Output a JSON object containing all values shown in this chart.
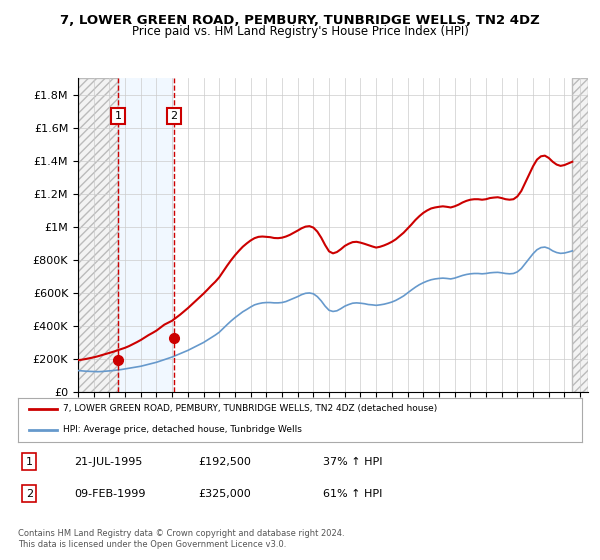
{
  "title": "7, LOWER GREEN ROAD, PEMBURY, TUNBRIDGE WELLS, TN2 4DZ",
  "subtitle": "Price paid vs. HM Land Registry's House Price Index (HPI)",
  "ylabel": "",
  "ylim": [
    0,
    1900000
  ],
  "yticks": [
    0,
    200000,
    400000,
    600000,
    800000,
    1000000,
    1200000,
    1400000,
    1600000,
    1800000
  ],
  "ytick_labels": [
    "£0",
    "£200K",
    "£400K",
    "£600K",
    "£800K",
    "£1M",
    "£1.2M",
    "£1.4M",
    "£1.6M",
    "£1.8M"
  ],
  "xlim_start": 1993.0,
  "xlim_end": 2025.5,
  "background_color": "#ffffff",
  "plot_bg_color": "#ffffff",
  "grid_color": "#cccccc",
  "hatch_color": "#cccccc",
  "sale1_date": 1995.55,
  "sale1_price": 192500,
  "sale1_label": "1",
  "sale2_date": 1999.11,
  "sale2_price": 325000,
  "sale2_label": "2",
  "sale_marker_color": "#cc0000",
  "sale_line_color": "#cc0000",
  "hpi_line_color": "#6699cc",
  "transaction_line_color": "#cc0000",
  "legend1_text": "7, LOWER GREEN ROAD, PEMBURY, TUNBRIDGE WELLS, TN2 4DZ (detached house)",
  "legend2_text": "HPI: Average price, detached house, Tunbridge Wells",
  "note_text": "Contains HM Land Registry data © Crown copyright and database right 2024.\nThis data is licensed under the Open Government Licence v3.0.",
  "table_rows": [
    {
      "num": "1",
      "date": "21-JUL-1995",
      "price": "£192,500",
      "change": "37% ↑ HPI"
    },
    {
      "num": "2",
      "date": "09-FEB-1999",
      "price": "£325,000",
      "change": "61% ↑ HPI"
    }
  ],
  "hpi_data_x": [
    1993.0,
    1993.25,
    1993.5,
    1993.75,
    1994.0,
    1994.25,
    1994.5,
    1994.75,
    1995.0,
    1995.25,
    1995.5,
    1995.75,
    1996.0,
    1996.25,
    1996.5,
    1996.75,
    1997.0,
    1997.25,
    1997.5,
    1997.75,
    1998.0,
    1998.25,
    1998.5,
    1998.75,
    1999.0,
    1999.25,
    1999.5,
    1999.75,
    2000.0,
    2000.25,
    2000.5,
    2000.75,
    2001.0,
    2001.25,
    2001.5,
    2001.75,
    2002.0,
    2002.25,
    2002.5,
    2002.75,
    2003.0,
    2003.25,
    2003.5,
    2003.75,
    2004.0,
    2004.25,
    2004.5,
    2004.75,
    2005.0,
    2005.25,
    2005.5,
    2005.75,
    2006.0,
    2006.25,
    2006.5,
    2006.75,
    2007.0,
    2007.25,
    2007.5,
    2007.75,
    2008.0,
    2008.25,
    2008.5,
    2008.75,
    2009.0,
    2009.25,
    2009.5,
    2009.75,
    2010.0,
    2010.25,
    2010.5,
    2010.75,
    2011.0,
    2011.25,
    2011.5,
    2011.75,
    2012.0,
    2012.25,
    2012.5,
    2012.75,
    2013.0,
    2013.25,
    2013.5,
    2013.75,
    2014.0,
    2014.25,
    2014.5,
    2014.75,
    2015.0,
    2015.25,
    2015.5,
    2015.75,
    2016.0,
    2016.25,
    2016.5,
    2016.75,
    2017.0,
    2017.25,
    2017.5,
    2017.75,
    2018.0,
    2018.25,
    2018.5,
    2018.75,
    2019.0,
    2019.25,
    2019.5,
    2019.75,
    2020.0,
    2020.25,
    2020.5,
    2020.75,
    2021.0,
    2021.25,
    2021.5,
    2021.75,
    2022.0,
    2022.25,
    2022.5,
    2022.75,
    2023.0,
    2023.25,
    2023.5,
    2023.75,
    2024.0,
    2024.25,
    2024.5
  ],
  "hpi_data_y": [
    130000,
    128000,
    126000,
    125000,
    124000,
    123000,
    124000,
    126000,
    128000,
    130000,
    133000,
    136000,
    140000,
    144000,
    148000,
    152000,
    156000,
    162000,
    168000,
    174000,
    180000,
    188000,
    196000,
    204000,
    212000,
    222000,
    232000,
    242000,
    252000,
    264000,
    276000,
    288000,
    300000,
    315000,
    330000,
    345000,
    362000,
    385000,
    408000,
    430000,
    450000,
    468000,
    486000,
    500000,
    515000,
    528000,
    535000,
    540000,
    542000,
    542000,
    540000,
    540000,
    542000,
    548000,
    558000,
    568000,
    578000,
    590000,
    598000,
    600000,
    595000,
    578000,
    552000,
    520000,
    495000,
    488000,
    492000,
    505000,
    520000,
    530000,
    538000,
    540000,
    538000,
    535000,
    530000,
    528000,
    525000,
    528000,
    532000,
    538000,
    545000,
    555000,
    568000,
    582000,
    600000,
    618000,
    635000,
    650000,
    662000,
    672000,
    680000,
    685000,
    688000,
    690000,
    688000,
    685000,
    690000,
    698000,
    706000,
    712000,
    716000,
    718000,
    718000,
    716000,
    718000,
    722000,
    724000,
    725000,
    722000,
    718000,
    716000,
    718000,
    728000,
    748000,
    778000,
    808000,
    838000,
    862000,
    875000,
    878000,
    870000,
    855000,
    845000,
    840000,
    842000,
    848000,
    855000
  ],
  "price_data_x": [
    1993.0,
    1993.25,
    1993.5,
    1993.75,
    1994.0,
    1994.25,
    1994.5,
    1994.75,
    1995.0,
    1995.25,
    1995.5,
    1995.75,
    1996.0,
    1996.25,
    1996.5,
    1996.75,
    1997.0,
    1997.25,
    1997.5,
    1997.75,
    1998.0,
    1998.25,
    1998.5,
    1998.75,
    1999.0,
    1999.25,
    1999.5,
    1999.75,
    2000.0,
    2000.25,
    2000.5,
    2000.75,
    2001.0,
    2001.25,
    2001.5,
    2001.75,
    2002.0,
    2002.25,
    2002.5,
    2002.75,
    2003.0,
    2003.25,
    2003.5,
    2003.75,
    2004.0,
    2004.25,
    2004.5,
    2004.75,
    2005.0,
    2005.25,
    2005.5,
    2005.75,
    2006.0,
    2006.25,
    2006.5,
    2006.75,
    2007.0,
    2007.25,
    2007.5,
    2007.75,
    2008.0,
    2008.25,
    2008.5,
    2008.75,
    2009.0,
    2009.25,
    2009.5,
    2009.75,
    2010.0,
    2010.25,
    2010.5,
    2010.75,
    2011.0,
    2011.25,
    2011.5,
    2011.75,
    2012.0,
    2012.25,
    2012.5,
    2012.75,
    2013.0,
    2013.25,
    2013.5,
    2013.75,
    2014.0,
    2014.25,
    2014.5,
    2014.75,
    2015.0,
    2015.25,
    2015.5,
    2015.75,
    2016.0,
    2016.25,
    2016.5,
    2016.75,
    2017.0,
    2017.25,
    2017.5,
    2017.75,
    2018.0,
    2018.25,
    2018.5,
    2018.75,
    2019.0,
    2019.25,
    2019.5,
    2019.75,
    2020.0,
    2020.25,
    2020.5,
    2020.75,
    2021.0,
    2021.25,
    2021.5,
    2021.75,
    2022.0,
    2022.25,
    2022.5,
    2022.75,
    2023.0,
    2023.25,
    2023.5,
    2023.75,
    2024.0,
    2024.25,
    2024.5
  ],
  "price_data_y": [
    192500,
    196000,
    200000,
    205000,
    210000,
    216000,
    223000,
    230000,
    237000,
    244000,
    252000,
    260000,
    268000,
    278000,
    290000,
    302000,
    315000,
    330000,
    345000,
    358000,
    372000,
    390000,
    408000,
    420000,
    432000,
    450000,
    468000,
    488000,
    508000,
    530000,
    552000,
    574000,
    596000,
    620000,
    645000,
    668000,
    695000,
    730000,
    765000,
    798000,
    828000,
    855000,
    880000,
    900000,
    918000,
    932000,
    940000,
    942000,
    940000,
    938000,
    933000,
    932000,
    935000,
    942000,
    952000,
    965000,
    978000,
    992000,
    1002000,
    1005000,
    996000,
    972000,
    935000,
    890000,
    852000,
    840000,
    848000,
    865000,
    885000,
    898000,
    908000,
    910000,
    905000,
    898000,
    890000,
    882000,
    875000,
    880000,
    888000,
    898000,
    910000,
    925000,
    945000,
    965000,
    990000,
    1015000,
    1042000,
    1065000,
    1085000,
    1100000,
    1112000,
    1118000,
    1122000,
    1125000,
    1122000,
    1118000,
    1125000,
    1135000,
    1148000,
    1158000,
    1165000,
    1168000,
    1168000,
    1165000,
    1168000,
    1175000,
    1178000,
    1180000,
    1175000,
    1168000,
    1165000,
    1168000,
    1185000,
    1218000,
    1268000,
    1318000,
    1368000,
    1408000,
    1428000,
    1432000,
    1418000,
    1395000,
    1378000,
    1370000,
    1375000,
    1385000,
    1395000
  ]
}
